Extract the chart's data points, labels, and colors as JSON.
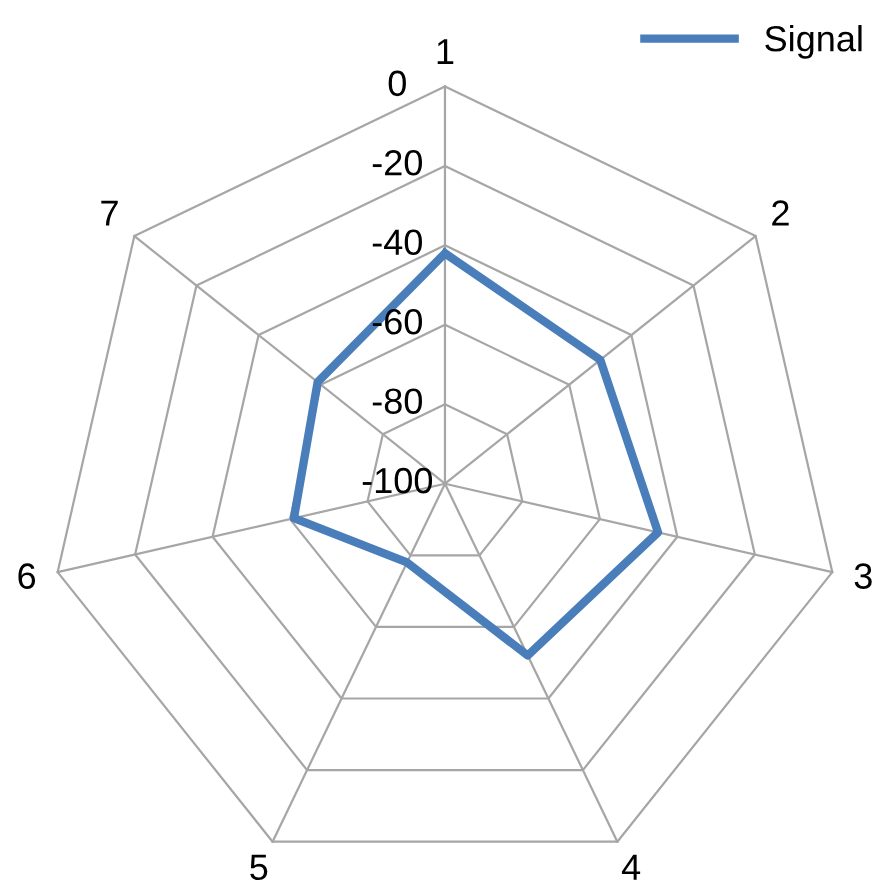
{
  "chart_data": {
    "type": "radar",
    "categories": [
      "1",
      "2",
      "3",
      "4",
      "5",
      "6",
      "7"
    ],
    "series": [
      {
        "name": "Signal",
        "color": "#4a7ebb",
        "values": [
          -42,
          -50,
          -45,
          -52,
          -78,
          -61,
          -59
        ]
      }
    ],
    "ylim": [
      -100,
      0
    ],
    "yticks": [
      -100,
      -80,
      -60,
      -40,
      -20,
      0
    ],
    "grid": true,
    "legend": "top right"
  }
}
